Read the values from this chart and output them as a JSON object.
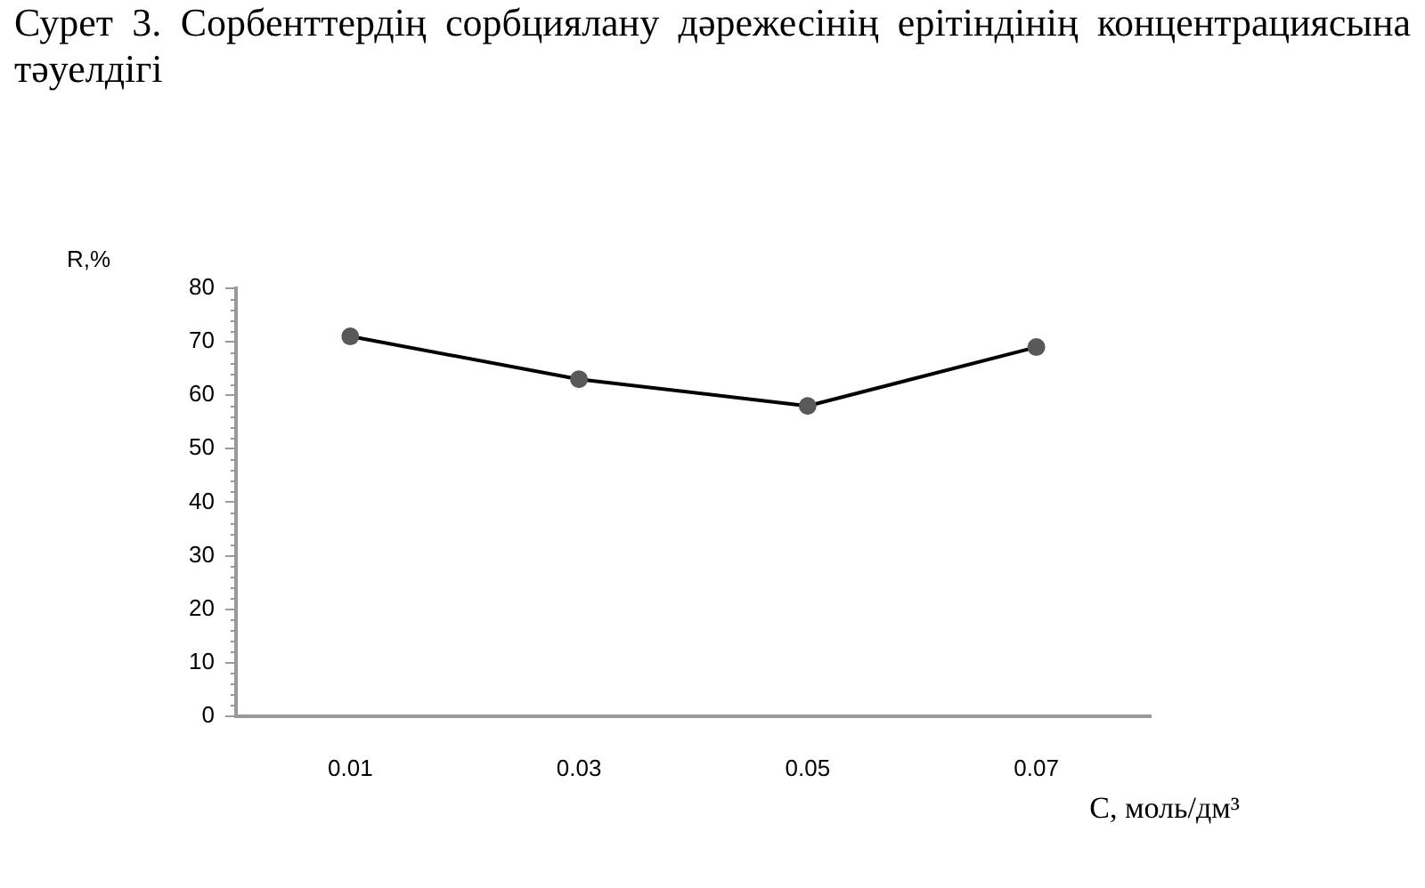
{
  "chart_data": {
    "type": "line",
    "title": "Сурет 3. Сорбенттердің сорбциялану дәрежесінің ерітіндінің концентрациясына тәуелдігі",
    "xlabel": "C, моль/дм³",
    "ylabel": "R,%",
    "categories": [
      "0.01",
      "0.03",
      "0.05",
      "0.07"
    ],
    "series": [
      {
        "color": "#000000",
        "values": [
          71,
          63,
          58,
          69
        ]
      }
    ],
    "ylim": [
      0,
      80
    ],
    "yticks": [
      0,
      10,
      20,
      30,
      40,
      50,
      60,
      70,
      80
    ],
    "grid": false,
    "legend": false,
    "marker": "circle",
    "line_style": "solid"
  }
}
